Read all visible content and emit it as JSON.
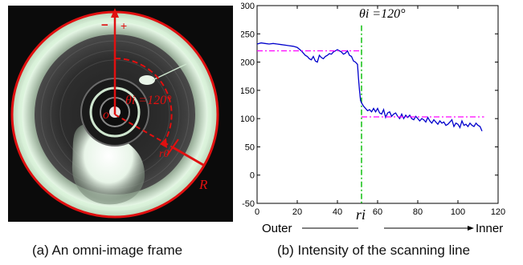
{
  "panel_a": {
    "caption": "(a) An omni-image frame",
    "angle_label": "θi =120°",
    "center_label": "o",
    "ring_label": "r0",
    "radius_label": "R",
    "minus_sign": "−",
    "plus_sign": "+",
    "colors": {
      "border": "#e01010",
      "annotation": "#e01010",
      "image_bg": "#0b0b0b"
    }
  },
  "panel_b": {
    "caption": "(b) Intensity of the scanning line",
    "title": "θi =120°",
    "outer_label": "Outer",
    "inner_label": "Inner",
    "ri_label": "ri"
  },
  "chart_data": {
    "type": "line",
    "title": "θi =120°",
    "xlim": [
      0,
      120
    ],
    "ylim": [
      -50,
      300
    ],
    "xticks": [
      0,
      20,
      40,
      60,
      80,
      100,
      120
    ],
    "yticks": [
      -50,
      0,
      50,
      100,
      150,
      200,
      250,
      300
    ],
    "grid": false,
    "colors": {
      "intensity": "#0000cc",
      "mean": "#ff00ff",
      "ri_line": "#00bb00"
    },
    "series": [
      {
        "kind": "intensity",
        "x": [
          0,
          2,
          4,
          6,
          8,
          10,
          12,
          14,
          16,
          18,
          20,
          22,
          24,
          25,
          26,
          27,
          28,
          29,
          30,
          31,
          32,
          33,
          34,
          35,
          36,
          37,
          38,
          39,
          40,
          41,
          42,
          43,
          44,
          45,
          46,
          47,
          48,
          49,
          50,
          50.5,
          51,
          51.5,
          52,
          53,
          54,
          55,
          56,
          57,
          58,
          59,
          60,
          61,
          62,
          63,
          64,
          65,
          66,
          67,
          68,
          69,
          70,
          71,
          72,
          73,
          74,
          75,
          76,
          77,
          78,
          79,
          80,
          81,
          82,
          83,
          84,
          85,
          86,
          87,
          88,
          89,
          90,
          91,
          92,
          93,
          94,
          95,
          96,
          97,
          98,
          99,
          100,
          101,
          102,
          103,
          104,
          105,
          106,
          107,
          108,
          109,
          110,
          111,
          112
        ],
        "y": [
          232,
          234,
          233,
          232,
          233,
          232,
          231,
          230,
          229,
          228,
          226,
          220,
          212,
          210,
          206,
          204,
          210,
          202,
          200,
          212,
          208,
          206,
          210,
          212,
          215,
          214,
          218,
          220,
          222,
          220,
          218,
          214,
          216,
          220,
          212,
          210,
          202,
          200,
          196,
          170,
          150,
          132,
          128,
          122,
          118,
          114,
          116,
          112,
          118,
          112,
          118,
          110,
          108,
          116,
          102,
          110,
          112,
          104,
          108,
          110,
          104,
          100,
          108,
          100,
          106,
          102,
          106,
          100,
          98,
          104,
          100,
          96,
          100,
          98,
          94,
          102,
          96,
          92,
          98,
          94,
          90,
          96,
          92,
          94,
          88,
          90,
          94,
          98,
          86,
          92,
          90,
          84,
          96,
          88,
          90,
          86,
          92,
          88,
          86,
          92,
          88,
          86,
          78
        ]
      },
      {
        "kind": "mean-outer",
        "x": [
          0,
          52
        ],
        "y": [
          220,
          220
        ]
      },
      {
        "kind": "mean-inner",
        "x": [
          52,
          113
        ],
        "y": [
          103,
          103
        ]
      }
    ],
    "ri_x": 52,
    "annotations": [
      "Outer",
      "Inner",
      "ri"
    ]
  }
}
